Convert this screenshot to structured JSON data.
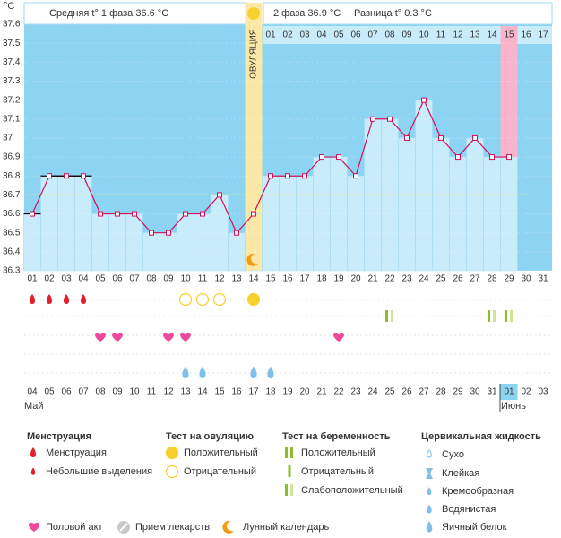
{
  "chart_data": {
    "type": "line",
    "y_label": "°C",
    "categories": [
      "01",
      "02",
      "03",
      "04",
      "05",
      "06",
      "07",
      "08",
      "09",
      "10",
      "11",
      "12",
      "13",
      "14",
      "15",
      "16",
      "17",
      "18",
      "19",
      "20",
      "21",
      "22",
      "23",
      "24",
      "25",
      "26",
      "27",
      "28",
      "29",
      "30",
      "31"
    ],
    "values": [
      36.6,
      36.8,
      36.8,
      36.8,
      36.6,
      36.6,
      36.6,
      36.5,
      36.5,
      36.6,
      36.6,
      36.7,
      36.5,
      36.6,
      36.8,
      36.8,
      36.8,
      36.9,
      36.9,
      36.8,
      37.1,
      37.1,
      37.0,
      37.2,
      37.0,
      36.9,
      37.0,
      36.9,
      36.9,
      null,
      null
    ],
    "color": "#d0105a",
    "ylim": [
      36.3,
      37.6
    ],
    "yticks": [
      36.3,
      36.4,
      36.5,
      36.6,
      36.7,
      36.8,
      36.9,
      37,
      37.1,
      37.2,
      37.3,
      37.4,
      37.5,
      37.6
    ],
    "grid": true,
    "cover_line": 36.7,
    "marked_days": [
      1,
      2,
      3,
      4
    ],
    "ovulation_day": 14,
    "ovulation_label": "ОВУЛЯЦИЯ",
    "highlight_day": 29,
    "phase1_text": "Средняя t° 1 фаза 36.6 °C",
    "phase2_text": "2 фаза 36.9 °C",
    "diff_text": "Разница t° 0.3 °C",
    "phase2_days": [
      "01",
      "02",
      "03",
      "04",
      "05",
      "06",
      "07",
      "08",
      "09",
      "10",
      "11",
      "12",
      "13",
      "14",
      "15",
      "16",
      "17"
    ],
    "dates": [
      {
        "text": "04",
        "red": false
      },
      {
        "text": "05",
        "red": false
      },
      {
        "text": "06",
        "red": false
      },
      {
        "text": "07",
        "red": false
      },
      {
        "text": "08",
        "red": false
      },
      {
        "text": "09",
        "red": true
      },
      {
        "text": "10",
        "red": true
      },
      {
        "text": "11",
        "red": false
      },
      {
        "text": "12",
        "red": false
      },
      {
        "text": "13",
        "red": false
      },
      {
        "text": "14",
        "red": false
      },
      {
        "text": "15",
        "red": false
      },
      {
        "text": "16",
        "red": true
      },
      {
        "text": "17",
        "red": true
      },
      {
        "text": "18",
        "red": false
      },
      {
        "text": "19",
        "red": false
      },
      {
        "text": "20",
        "red": false
      },
      {
        "text": "21",
        "red": false
      },
      {
        "text": "22",
        "red": false
      },
      {
        "text": "23",
        "red": true
      },
      {
        "text": "24",
        "red": true
      },
      {
        "text": "25",
        "red": false
      },
      {
        "text": "26",
        "red": false
      },
      {
        "text": "27",
        "red": false
      },
      {
        "text": "28",
        "red": false
      },
      {
        "text": "29",
        "red": false
      },
      {
        "text": "30",
        "red": true
      },
      {
        "text": "31",
        "red": true
      },
      {
        "text": "01",
        "red": false
      },
      {
        "text": "02",
        "red": false
      },
      {
        "text": "03",
        "red": false
      }
    ],
    "months": [
      {
        "text": "Май",
        "day": 1
      },
      {
        "text": "Июнь",
        "day": 29
      }
    ],
    "menstruation_days": [
      1,
      2,
      3,
      4
    ],
    "ovulation_tests": [
      {
        "day": 10,
        "positive": false
      },
      {
        "day": 11,
        "positive": false
      },
      {
        "day": 12,
        "positive": false
      },
      {
        "day": 14,
        "positive": true
      }
    ],
    "pregnancy_tests": [
      {
        "day": 22,
        "result": "weak"
      },
      {
        "day": 28,
        "result": "weak"
      },
      {
        "day": 29,
        "result": "weak"
      }
    ],
    "intercourse_days": [
      5,
      6,
      9,
      10,
      19
    ],
    "egg_white_days": [
      10,
      11,
      14,
      15
    ]
  },
  "legend": {
    "menstruation": {
      "title": "Менструация",
      "items": [
        "Менструация",
        "Небольшие выделения"
      ]
    },
    "ovulation_test": {
      "title": "Тест на овуляцию",
      "items": [
        "Положительный",
        "Отрицательный"
      ]
    },
    "pregnancy_test": {
      "title": "Тест на беременность",
      "items": [
        "Положительный",
        "Отрицательный",
        "Слабоположительный"
      ]
    },
    "cervical": {
      "title": "Цервикальная жидкость",
      "items": [
        "Сухо",
        "Клейкая",
        "Кремообразная",
        "Водянистая",
        "Яичный белок"
      ]
    },
    "other": [
      "Половой акт",
      "Прием лекарств",
      "Лунный календарь"
    ]
  }
}
